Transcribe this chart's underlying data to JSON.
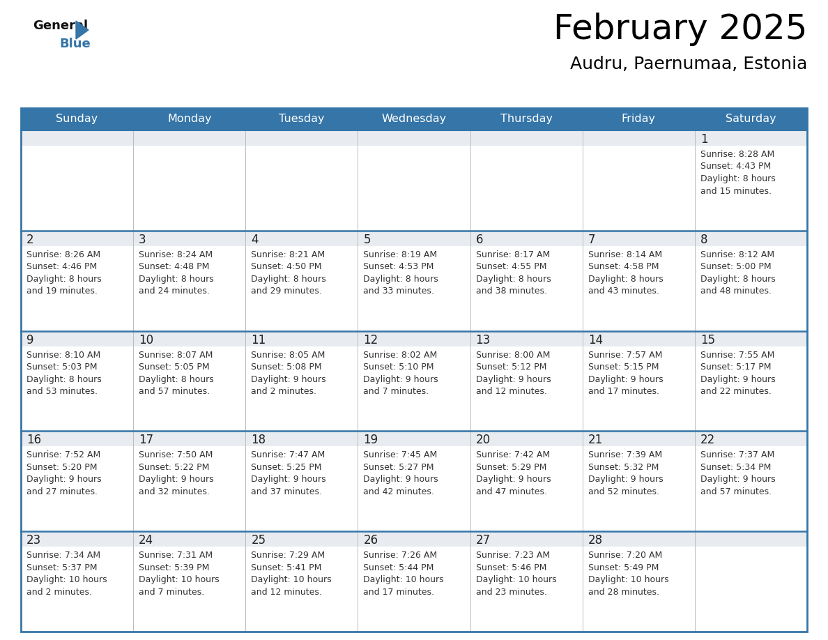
{
  "title": "February 2025",
  "subtitle": "Audru, Paernumaa, Estonia",
  "days_of_week": [
    "Sunday",
    "Monday",
    "Tuesday",
    "Wednesday",
    "Thursday",
    "Friday",
    "Saturday"
  ],
  "header_bg": "#3575a8",
  "header_text": "#ffffff",
  "cell_top_bg": "#e8ecf0",
  "cell_body_bg": "#ffffff",
  "border_color": "#3575a8",
  "day_num_color": "#222222",
  "text_color": "#333333",
  "weeks": [
    [
      {
        "day": null,
        "sunrise": null,
        "sunset": null,
        "daylight": null
      },
      {
        "day": null,
        "sunrise": null,
        "sunset": null,
        "daylight": null
      },
      {
        "day": null,
        "sunrise": null,
        "sunset": null,
        "daylight": null
      },
      {
        "day": null,
        "sunrise": null,
        "sunset": null,
        "daylight": null
      },
      {
        "day": null,
        "sunrise": null,
        "sunset": null,
        "daylight": null
      },
      {
        "day": null,
        "sunrise": null,
        "sunset": null,
        "daylight": null
      },
      {
        "day": 1,
        "sunrise": "8:28 AM",
        "sunset": "4:43 PM",
        "daylight": "8 hours\nand 15 minutes."
      }
    ],
    [
      {
        "day": 2,
        "sunrise": "8:26 AM",
        "sunset": "4:46 PM",
        "daylight": "8 hours\nand 19 minutes."
      },
      {
        "day": 3,
        "sunrise": "8:24 AM",
        "sunset": "4:48 PM",
        "daylight": "8 hours\nand 24 minutes."
      },
      {
        "day": 4,
        "sunrise": "8:21 AM",
        "sunset": "4:50 PM",
        "daylight": "8 hours\nand 29 minutes."
      },
      {
        "day": 5,
        "sunrise": "8:19 AM",
        "sunset": "4:53 PM",
        "daylight": "8 hours\nand 33 minutes."
      },
      {
        "day": 6,
        "sunrise": "8:17 AM",
        "sunset": "4:55 PM",
        "daylight": "8 hours\nand 38 minutes."
      },
      {
        "day": 7,
        "sunrise": "8:14 AM",
        "sunset": "4:58 PM",
        "daylight": "8 hours\nand 43 minutes."
      },
      {
        "day": 8,
        "sunrise": "8:12 AM",
        "sunset": "5:00 PM",
        "daylight": "8 hours\nand 48 minutes."
      }
    ],
    [
      {
        "day": 9,
        "sunrise": "8:10 AM",
        "sunset": "5:03 PM",
        "daylight": "8 hours\nand 53 minutes."
      },
      {
        "day": 10,
        "sunrise": "8:07 AM",
        "sunset": "5:05 PM",
        "daylight": "8 hours\nand 57 minutes."
      },
      {
        "day": 11,
        "sunrise": "8:05 AM",
        "sunset": "5:08 PM",
        "daylight": "9 hours\nand 2 minutes."
      },
      {
        "day": 12,
        "sunrise": "8:02 AM",
        "sunset": "5:10 PM",
        "daylight": "9 hours\nand 7 minutes."
      },
      {
        "day": 13,
        "sunrise": "8:00 AM",
        "sunset": "5:12 PM",
        "daylight": "9 hours\nand 12 minutes."
      },
      {
        "day": 14,
        "sunrise": "7:57 AM",
        "sunset": "5:15 PM",
        "daylight": "9 hours\nand 17 minutes."
      },
      {
        "day": 15,
        "sunrise": "7:55 AM",
        "sunset": "5:17 PM",
        "daylight": "9 hours\nand 22 minutes."
      }
    ],
    [
      {
        "day": 16,
        "sunrise": "7:52 AM",
        "sunset": "5:20 PM",
        "daylight": "9 hours\nand 27 minutes."
      },
      {
        "day": 17,
        "sunrise": "7:50 AM",
        "sunset": "5:22 PM",
        "daylight": "9 hours\nand 32 minutes."
      },
      {
        "day": 18,
        "sunrise": "7:47 AM",
        "sunset": "5:25 PM",
        "daylight": "9 hours\nand 37 minutes."
      },
      {
        "day": 19,
        "sunrise": "7:45 AM",
        "sunset": "5:27 PM",
        "daylight": "9 hours\nand 42 minutes."
      },
      {
        "day": 20,
        "sunrise": "7:42 AM",
        "sunset": "5:29 PM",
        "daylight": "9 hours\nand 47 minutes."
      },
      {
        "day": 21,
        "sunrise": "7:39 AM",
        "sunset": "5:32 PM",
        "daylight": "9 hours\nand 52 minutes."
      },
      {
        "day": 22,
        "sunrise": "7:37 AM",
        "sunset": "5:34 PM",
        "daylight": "9 hours\nand 57 minutes."
      }
    ],
    [
      {
        "day": 23,
        "sunrise": "7:34 AM",
        "sunset": "5:37 PM",
        "daylight": "10 hours\nand 2 minutes."
      },
      {
        "day": 24,
        "sunrise": "7:31 AM",
        "sunset": "5:39 PM",
        "daylight": "10 hours\nand 7 minutes."
      },
      {
        "day": 25,
        "sunrise": "7:29 AM",
        "sunset": "5:41 PM",
        "daylight": "10 hours\nand 12 minutes."
      },
      {
        "day": 26,
        "sunrise": "7:26 AM",
        "sunset": "5:44 PM",
        "daylight": "10 hours\nand 17 minutes."
      },
      {
        "day": 27,
        "sunrise": "7:23 AM",
        "sunset": "5:46 PM",
        "daylight": "10 hours\nand 23 minutes."
      },
      {
        "day": 28,
        "sunrise": "7:20 AM",
        "sunset": "5:49 PM",
        "daylight": "10 hours\nand 28 minutes."
      },
      {
        "day": null,
        "sunrise": null,
        "sunset": null,
        "daylight": null
      }
    ]
  ]
}
